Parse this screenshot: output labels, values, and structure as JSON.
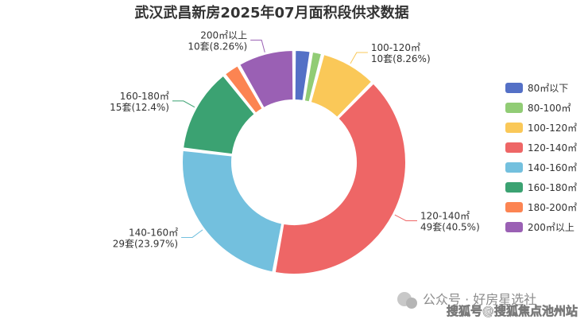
{
  "chart_data": {
    "type": "pie",
    "title": "武汉武昌新房2025年07月面积段供求数据",
    "legend_position": "right",
    "categories": [
      "80㎡以下",
      "80-100㎡",
      "100-120㎡",
      "120-140㎡",
      "140-160㎡",
      "160-180㎡",
      "180-200㎡",
      "200㎡以上"
    ],
    "values": [
      3,
      2,
      10,
      49,
      29,
      15,
      3,
      10
    ],
    "colors": [
      "#5470c6",
      "#91cc75",
      "#fac858",
      "#ee6666",
      "#73c0de",
      "#3ba272",
      "#fc8452",
      "#9a60b4"
    ],
    "callouts": [
      {
        "category_index": 2,
        "line1": "100-120㎡",
        "line2": "10套(8.26%)"
      },
      {
        "category_index": 3,
        "line1": "120-140㎡",
        "line2": "49套(40.5%)"
      },
      {
        "category_index": 4,
        "line1": "140-160㎡",
        "line2": "29套(23.97%)"
      },
      {
        "category_index": 5,
        "line1": "160-180㎡",
        "line2": "15套(12.4%)"
      },
      {
        "category_index": 7,
        "line1": "200㎡以上",
        "line2": "10套(8.26%)"
      }
    ]
  },
  "watermark": {
    "line1": "公众号 · 好房星选社",
    "line2": "搜狐号@搜狐焦点池州站"
  }
}
